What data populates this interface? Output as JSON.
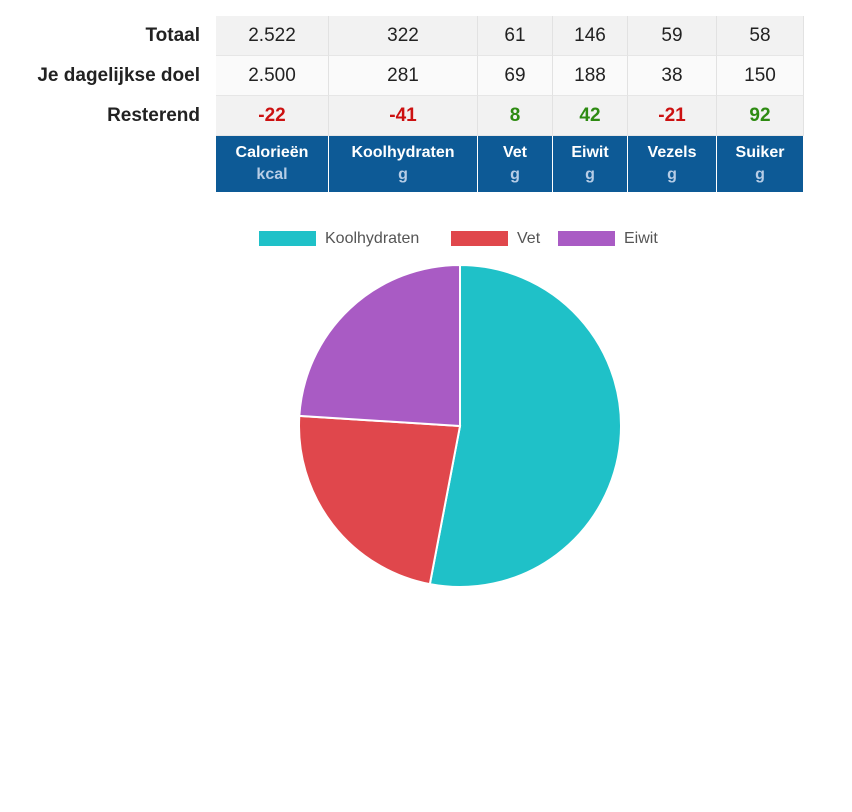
{
  "table": {
    "row_labels": [
      "Totaal",
      "Je dagelijkse doel",
      "Resterend"
    ],
    "rows": [
      [
        "2.522",
        "322",
        "61",
        "146",
        "59",
        "58"
      ],
      [
        "2.500",
        "281",
        "69",
        "188",
        "38",
        "150"
      ],
      [
        "-22",
        "-41",
        "8",
        "42",
        "-21",
        "92"
      ]
    ],
    "columns": [
      {
        "name": "Calorieën",
        "unit": "kcal"
      },
      {
        "name": "Koolhydraten",
        "unit": "g"
      },
      {
        "name": "Vet",
        "unit": "g"
      },
      {
        "name": "Eiwit",
        "unit": "g"
      },
      {
        "name": "Vezels",
        "unit": "g"
      },
      {
        "name": "Suiker",
        "unit": "g"
      }
    ]
  },
  "chart_data": {
    "type": "pie",
    "categories": [
      "Koolhydraten",
      "Vet",
      "Eiwit"
    ],
    "values": [
      53,
      23,
      24
    ],
    "colors": [
      "#1fc1c8",
      "#e0474c",
      "#a95bc4"
    ]
  }
}
